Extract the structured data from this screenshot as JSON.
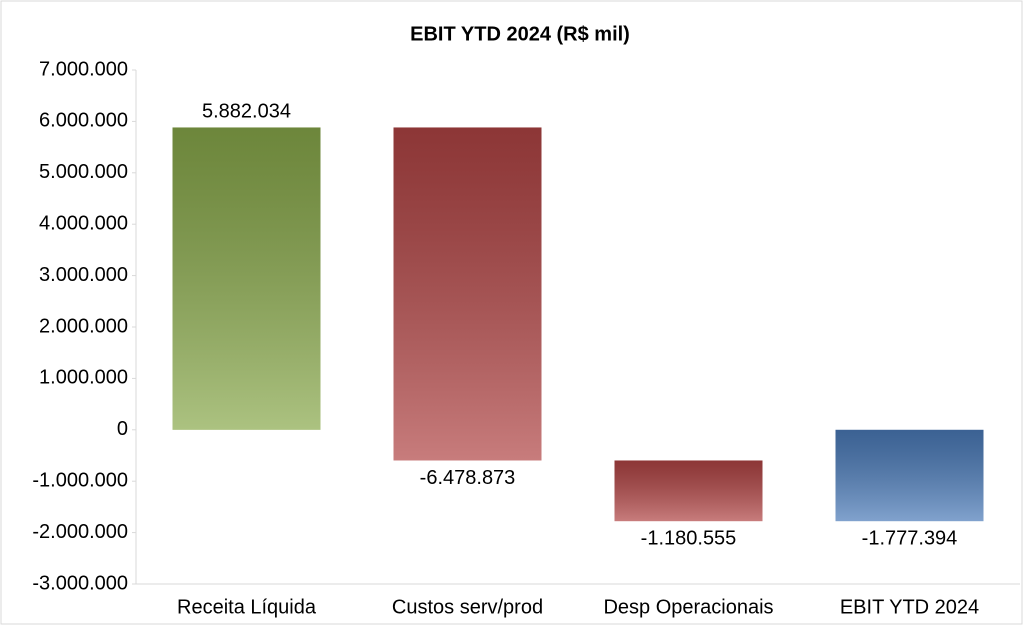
{
  "chart_data": {
    "type": "waterfall",
    "title": "EBIT YTD 2024 (R$ mil)",
    "categories": [
      "Receita Líquida",
      "Custos serv/prod",
      "Desp Operacionais",
      "EBIT YTD 2024"
    ],
    "values": [
      5882034,
      -6478873,
      -1180555,
      -1777394
    ],
    "value_labels": [
      "5.882.034",
      "-6.478.873",
      "-1.180.555",
      "-1.777.394"
    ],
    "total": [
      false,
      false,
      false,
      true
    ],
    "colors": [
      "#88a84a",
      "#b04444",
      "#b04444",
      "#4a7ab8"
    ],
    "ylim": [
      -3000000,
      7000000
    ],
    "yticks": [
      {
        "value": -3000000,
        "label": "-3.000.000"
      },
      {
        "value": -2000000,
        "label": "-2.000.000"
      },
      {
        "value": -1000000,
        "label": "-1.000.000"
      },
      0,
      {
        "value": 1000000,
        "label": "1.000.000"
      },
      {
        "value": 2000000,
        "label": "2.000.000"
      },
      {
        "value": 3000000,
        "label": "3.000.000"
      },
      {
        "value": 4000000,
        "label": "4.000.000"
      },
      {
        "value": 5000000,
        "label": "5.000.000"
      },
      {
        "value": 6000000,
        "label": "6.000.000"
      },
      {
        "value": 7000000,
        "label": "7.000.000"
      }
    ],
    "grid": false
  }
}
